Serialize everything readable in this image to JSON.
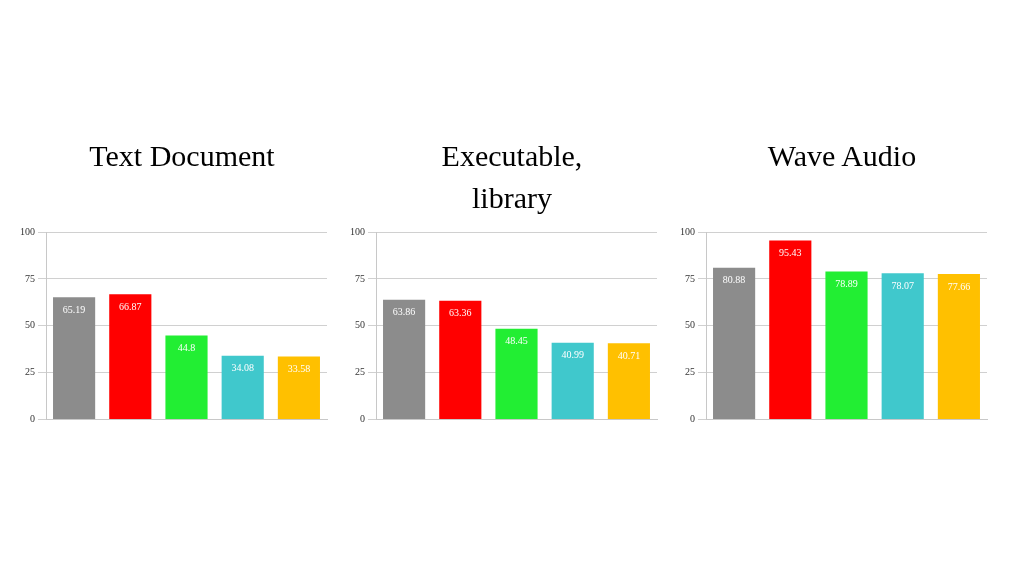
{
  "chart_data": [
    {
      "type": "bar",
      "title": "Text Document",
      "categories": [
        null,
        null,
        null,
        null,
        null
      ],
      "values": [
        65.19,
        66.87,
        44.8,
        34.08,
        33.58
      ],
      "colors": [
        "#8c8c8c",
        "#ff0000",
        "#22ee33",
        "#40c8cc",
        "#ffc000"
      ],
      "ylim": [
        0,
        100
      ],
      "yticks": [
        0,
        25,
        50,
        75,
        100
      ],
      "grid": "y",
      "data_labels": true
    },
    {
      "type": "bar",
      "title": "Executable, library",
      "categories": [
        null,
        null,
        null,
        null,
        null
      ],
      "values": [
        63.86,
        63.36,
        48.45,
        40.99,
        40.71
      ],
      "colors": [
        "#8c8c8c",
        "#ff0000",
        "#22ee33",
        "#40c8cc",
        "#ffc000"
      ],
      "ylim": [
        0,
        100
      ],
      "yticks": [
        0,
        25,
        50,
        75,
        100
      ],
      "grid": "y",
      "data_labels": true
    },
    {
      "type": "bar",
      "title": "Wave Audio",
      "categories": [
        null,
        null,
        null,
        null,
        null
      ],
      "values": [
        80.88,
        95.43,
        78.89,
        78.07,
        77.66
      ],
      "colors": [
        "#8c8c8c",
        "#ff0000",
        "#22ee33",
        "#40c8cc",
        "#ffc000"
      ],
      "ylim": [
        0,
        100
      ],
      "yticks": [
        0,
        25,
        50,
        75,
        100
      ],
      "grid": "y",
      "data_labels": true
    }
  ]
}
